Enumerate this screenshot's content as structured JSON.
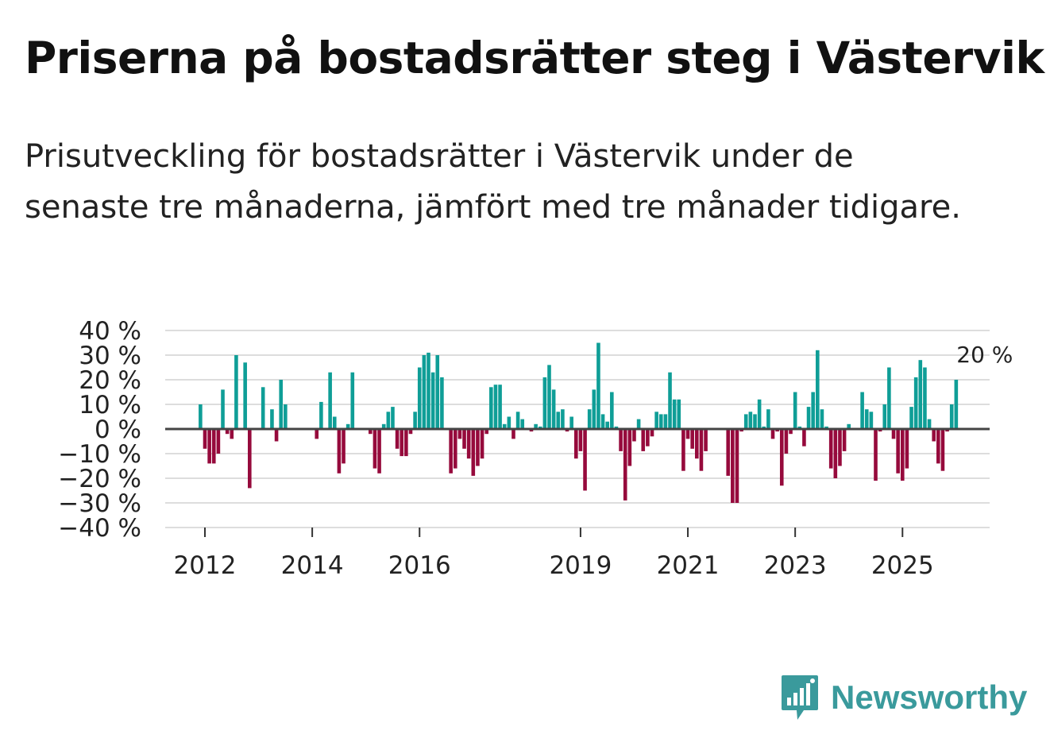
{
  "title": "Priserna på bostadsrätter steg i Västervik",
  "subtitle": "Prisutveckling för bostadsrätter i Västervik under de senaste tre månaderna, jämfört med tre månader tidigare.",
  "brand": "Newsworthy",
  "colors": {
    "positive": "#0f9e97",
    "negative": "#960a3c",
    "grid": "#dddddd",
    "zero": "#444444",
    "brand": "#3a9a9c"
  },
  "chart_data": {
    "type": "bar",
    "title": "Priserna på bostadsrätter steg i Västervik",
    "xlabel": "",
    "ylabel": "",
    "ylim": [
      -40,
      40
    ],
    "yticks": [
      40,
      30,
      20,
      10,
      0,
      -10,
      -20,
      -30,
      -40
    ],
    "ytick_labels": [
      "40 %",
      "30 %",
      "20 %",
      "10 %",
      "0 %",
      "−10 %",
      "−20 %",
      "−30 %",
      "−40 %"
    ],
    "x_start": "2011-12",
    "xticks": [
      {
        "label": "2012",
        "year": 2012
      },
      {
        "label": "2014",
        "year": 2014
      },
      {
        "label": "2016",
        "year": 2016
      },
      {
        "label": "2019",
        "year": 2019
      },
      {
        "label": "2021",
        "year": 2021
      },
      {
        "label": "2023",
        "year": 2023
      },
      {
        "label": "2025",
        "year": 2025
      }
    ],
    "end_label": "20 %",
    "values": [
      10,
      -8,
      -14,
      -14,
      -10,
      16,
      -2,
      -4,
      30,
      0,
      27,
      -24,
      0,
      0,
      17,
      0,
      8,
      -5,
      20,
      10,
      0,
      0,
      0,
      0,
      0,
      0,
      -4,
      11,
      0,
      23,
      5,
      -18,
      -14,
      2,
      23,
      0,
      0,
      0,
      -2,
      -16,
      -18,
      2,
      7,
      9,
      -8,
      -11,
      -11,
      -2,
      7,
      25,
      30,
      31,
      23,
      30,
      21,
      0,
      -18,
      -16,
      -4,
      -8,
      -12,
      -19,
      -15,
      -12,
      -2,
      17,
      18,
      18,
      2,
      5,
      -4,
      7,
      4,
      0,
      -1,
      2,
      1,
      21,
      26,
      16,
      7,
      8,
      -1,
      5,
      -12,
      -9,
      -25,
      8,
      16,
      35,
      6,
      3,
      15,
      1,
      -9,
      -29,
      -15,
      -5,
      4,
      -9,
      -7,
      -3,
      7,
      6,
      6,
      23,
      12,
      12,
      -17,
      -4,
      -8,
      -12,
      -17,
      -9,
      0,
      0,
      0,
      0,
      -19,
      -30,
      -30,
      -1,
      6,
      7,
      6,
      12,
      1,
      8,
      -4,
      -1,
      -23,
      -10,
      -2,
      15,
      1,
      -7,
      9,
      15,
      32,
      8,
      1,
      -16,
      -20,
      -15,
      -9,
      2,
      0,
      0,
      15,
      8,
      7,
      -21,
      -1,
      10,
      25,
      -4,
      -18,
      -21,
      -16,
      9,
      21,
      28,
      25,
      4,
      -5,
      -14,
      -17,
      -1,
      10,
      20
    ]
  }
}
